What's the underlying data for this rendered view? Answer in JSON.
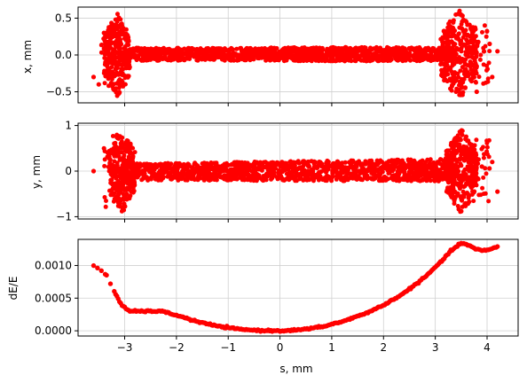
{
  "figure": {
    "background": "#ffffff",
    "marker_color": "#ff0000",
    "grid_color": "#d0d0d0"
  },
  "chart_data": [
    {
      "type": "scatter",
      "title": "",
      "xlabel": "",
      "ylabel": "x, mm",
      "xlim": [
        -3.9,
        4.6
      ],
      "ylim": [
        -0.65,
        0.65
      ],
      "xticks": [
        -3,
        -2,
        -1,
        0,
        1,
        2,
        3,
        4
      ],
      "yticks": [
        -0.5,
        0.0,
        0.5
      ],
      "ytick_labels": [
        "−0.5",
        "0.0",
        "0.5"
      ],
      "show_xtick_labels": false,
      "grid": true,
      "series": [
        {
          "color": "#ff0000",
          "description_points": {
            "core_band": {
              "x_range": [
                -3.0,
                3.4
              ],
              "y_range": [
                -0.14,
                0.16
              ]
            },
            "left_flare": {
              "x_range": [
                -3.4,
                -2.9
              ],
              "y_range": [
                -0.55,
                0.58
              ]
            },
            "right_flare": {
              "x_range": [
                3.1,
                3.8
              ],
              "y_range": [
                -0.6,
                0.62
              ]
            },
            "outliers": [
              [
                -3.6,
                -0.3
              ],
              [
                -3.5,
                -0.4
              ],
              [
                -3.4,
                0.3
              ],
              [
                4.05,
                0.15
              ],
              [
                4.2,
                0.05
              ],
              [
                4.1,
                -0.3
              ],
              [
                3.8,
                -0.5
              ]
            ]
          }
        }
      ]
    },
    {
      "type": "scatter",
      "title": "",
      "xlabel": "",
      "ylabel": "y, mm",
      "xlim": [
        -3.9,
        4.6
      ],
      "ylim": [
        -1.05,
        1.05
      ],
      "xticks": [
        -3,
        -2,
        -1,
        0,
        1,
        2,
        3,
        4
      ],
      "yticks": [
        -1,
        0,
        1
      ],
      "ytick_labels": [
        "−1",
        "0",
        "1"
      ],
      "show_xtick_labels": false,
      "grid": true,
      "series": [
        {
          "color": "#ff0000",
          "description_points": {
            "core_band_left": {
              "x": -2.7,
              "y_range": [
                -0.3,
                0.35
              ]
            },
            "core_band_mid": {
              "x": -2.0,
              "y_range": [
                -0.2,
                0.25
              ]
            },
            "core_band_right": {
              "x": 3.0,
              "y_range": [
                -0.5,
                0.6
              ]
            },
            "left_flare": {
              "x_range": [
                -3.3,
                -2.8
              ],
              "y_range": [
                -0.95,
                0.95
              ]
            },
            "right_flare": {
              "x_range": [
                3.2,
                3.8
              ],
              "y_range": [
                -0.95,
                0.95
              ]
            },
            "outliers": [
              [
                -3.6,
                0.0
              ],
              [
                -3.4,
                0.5
              ],
              [
                4.1,
                0.2
              ],
              [
                4.2,
                -0.45
              ],
              [
                3.9,
                0.1
              ]
            ]
          }
        }
      ]
    },
    {
      "type": "scatter",
      "title": "",
      "xlabel": "s, mm",
      "ylabel": "dE/E",
      "xlim": [
        -3.9,
        4.6
      ],
      "ylim": [
        -8e-05,
        0.0014
      ],
      "xticks": [
        -3,
        -2,
        -1,
        0,
        1,
        2,
        3,
        4
      ],
      "xtick_labels": [
        "−3",
        "−2",
        "−1",
        "0",
        "1",
        "2",
        "3",
        "4"
      ],
      "yticks": [
        0.0,
        0.0005,
        0.001
      ],
      "ytick_labels": [
        "0.0000",
        "0.0005",
        "0.0010"
      ],
      "show_xtick_labels": true,
      "grid": true,
      "series": [
        {
          "color": "#ff0000",
          "x": [
            -3.6,
            -3.35,
            -3.2,
            -3.05,
            -2.9,
            -2.7,
            -2.5,
            -2.3,
            -2.0,
            -1.6,
            -1.2,
            -0.8,
            -0.4,
            0.0,
            0.4,
            0.8,
            1.2,
            1.6,
            2.0,
            2.4,
            2.8,
            3.1,
            3.3,
            3.45,
            3.55,
            3.65,
            3.75,
            3.9,
            4.05,
            4.2
          ],
          "y": [
            0.001,
            0.00085,
            0.0006,
            0.00038,
            0.0003,
            0.0003,
            0.0003,
            0.0003,
            0.00024,
            0.00014,
            7e-05,
            2.5e-05,
            5e-06,
            0.0,
            1.5e-05,
            6e-05,
            0.00014,
            0.00025,
            0.00039,
            0.00058,
            0.00082,
            0.00105,
            0.00122,
            0.00132,
            0.00134,
            0.00131,
            0.00126,
            0.00123,
            0.00124,
            0.00129
          ]
        }
      ]
    }
  ]
}
